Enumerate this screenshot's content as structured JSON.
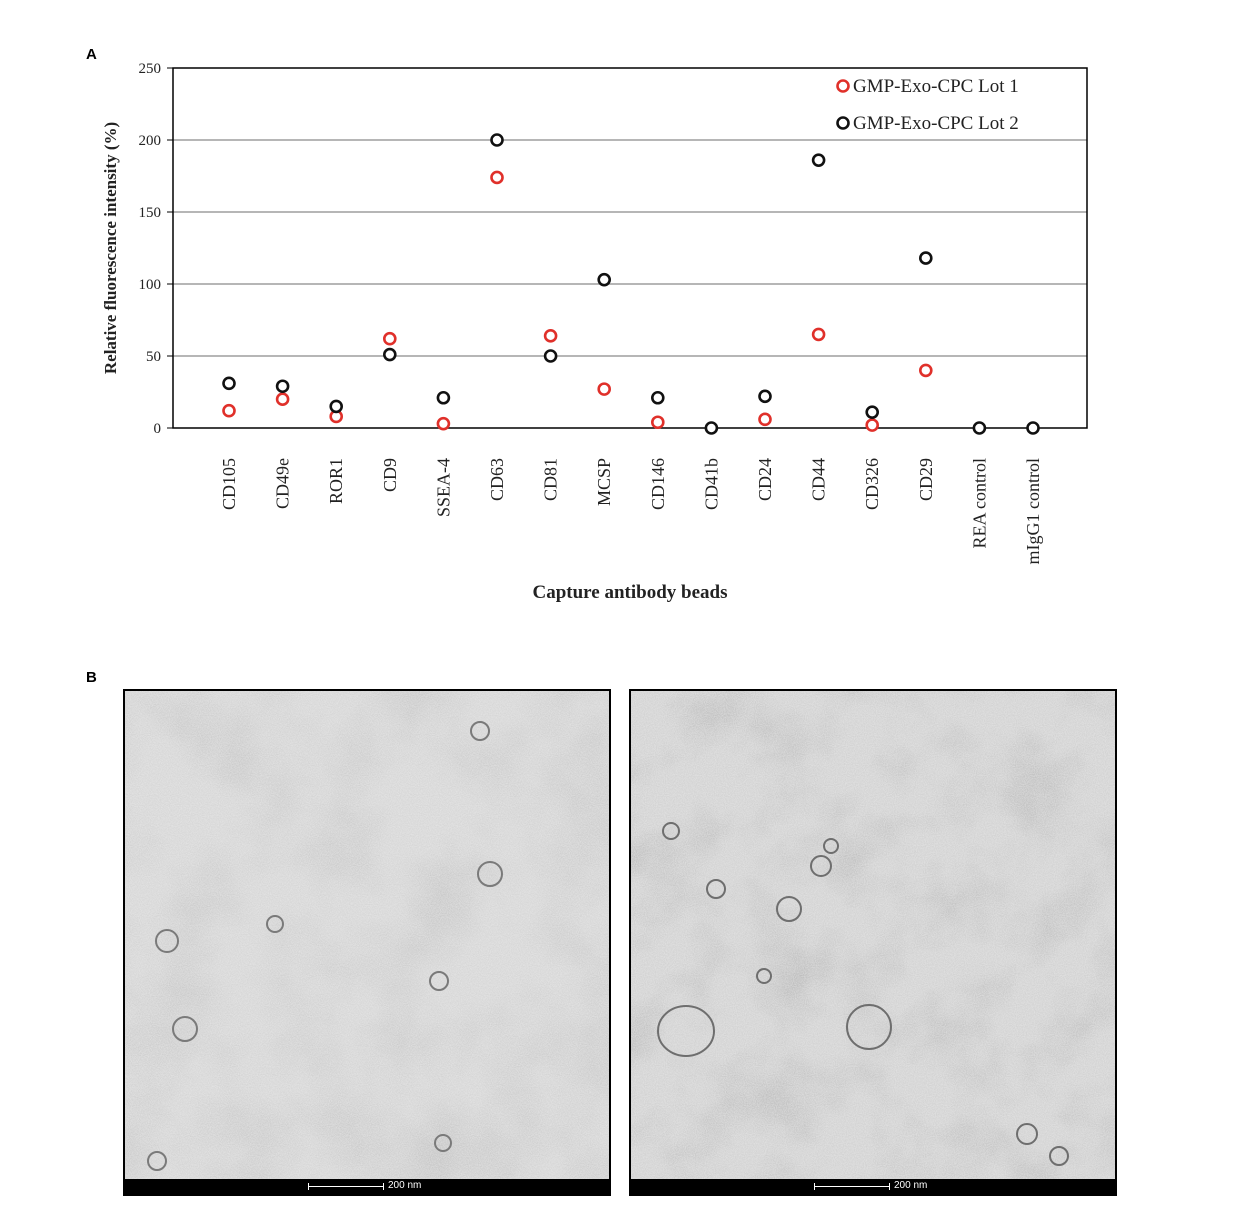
{
  "panel_a_label": "A",
  "panel_b_label": "B",
  "chart_data": {
    "type": "scatter",
    "xlabel": "Capture antibody beads",
    "ylabel": "Relative fluorescence intensity (%)",
    "ylim": [
      0,
      250
    ],
    "yticks": [
      0,
      50,
      100,
      150,
      200,
      250
    ],
    "grid": "horizontal",
    "legend": "top-right",
    "categories": [
      "CD105",
      "CD49e",
      "ROR1",
      "CD9",
      "SSEA-4",
      "CD63",
      "CD81",
      "MCSP",
      "CD146",
      "CD41b",
      "CD24",
      "CD44",
      "CD326",
      "CD29",
      "REA control",
      "mIgG1 control"
    ],
    "series": [
      {
        "name": "GMP-Exo-CPC Lot 1",
        "color": "#e0302a",
        "values": [
          12,
          20,
          8,
          62,
          3,
          174,
          64,
          27,
          4,
          null,
          6,
          65,
          2,
          40,
          null,
          null
        ]
      },
      {
        "name": "GMP-Exo-CPC Lot 2",
        "color": "#111111",
        "values": [
          31,
          29,
          15,
          51,
          21,
          200,
          50,
          103,
          21,
          0,
          22,
          186,
          11,
          118,
          0,
          0
        ]
      }
    ]
  },
  "em_images": [
    {
      "scale_label": "200 nm"
    },
    {
      "scale_label": "200 nm"
    }
  ]
}
